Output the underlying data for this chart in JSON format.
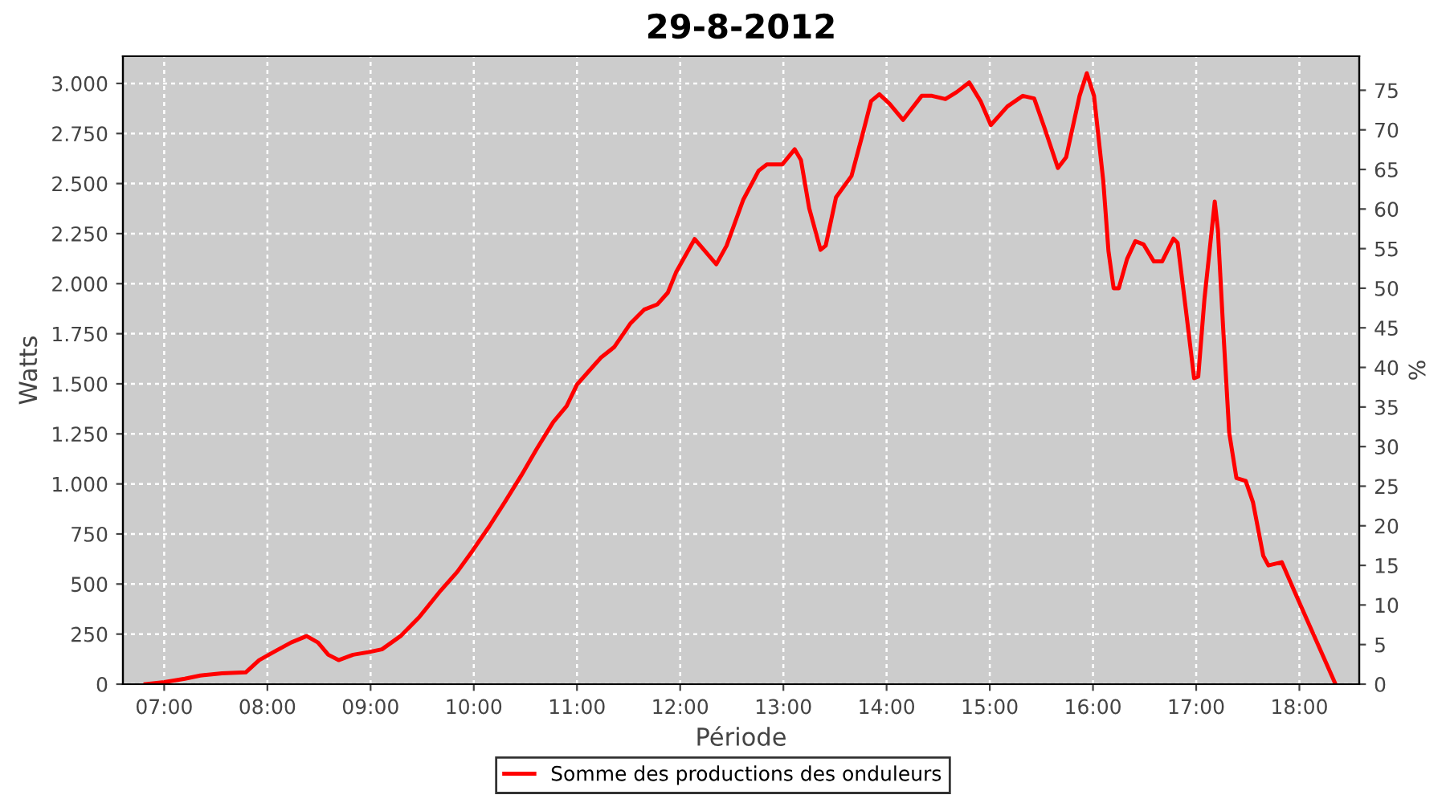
{
  "chart_data": {
    "type": "line",
    "title": "29-8-2012",
    "xlabel": "Période",
    "ylabel": "Watts",
    "y2label": "%",
    "series": [
      {
        "name": "Somme des productions des onduleurs",
        "color": "#ff0000",
        "x": [
          6.82,
          7.0,
          7.2,
          7.35,
          7.56,
          7.79,
          7.92,
          8.08,
          8.23,
          8.38,
          8.49,
          8.59,
          8.69,
          8.83,
          8.98,
          9.11,
          9.29,
          9.47,
          9.68,
          9.84,
          9.99,
          10.15,
          10.3,
          10.46,
          10.61,
          10.77,
          10.9,
          11.0,
          11.17,
          11.23,
          11.36,
          11.52,
          11.65,
          11.78,
          11.88,
          11.96,
          12.14,
          12.24,
          12.35,
          12.45,
          12.61,
          12.76,
          12.84,
          12.99,
          13.11,
          13.17,
          13.25,
          13.36,
          13.41,
          13.51,
          13.66,
          13.77,
          13.85,
          13.93,
          14.03,
          14.16,
          14.34,
          14.44,
          14.57,
          14.68,
          14.8,
          14.91,
          15.01,
          15.17,
          15.32,
          15.43,
          15.53,
          15.66,
          15.74,
          15.87,
          15.94,
          16.01,
          16.1,
          16.15,
          16.2,
          16.25,
          16.33,
          16.41,
          16.49,
          16.59,
          16.67,
          16.78,
          16.82,
          16.9,
          16.98,
          17.02,
          17.08,
          17.18,
          17.21,
          17.26,
          17.32,
          17.39,
          17.48,
          17.55,
          17.65,
          17.7,
          17.83,
          17.96,
          18.35
        ],
        "values": [
          0,
          10,
          27,
          43,
          54,
          59,
          120,
          166,
          208,
          240,
          208,
          147,
          120,
          147,
          160,
          174,
          240,
          334,
          468,
          561,
          668,
          788,
          909,
          1042,
          1175,
          1309,
          1389,
          1496,
          1595,
          1630,
          1683,
          1803,
          1870,
          1897,
          1955,
          2057,
          2223,
          2163,
          2097,
          2190,
          2418,
          2564,
          2596,
          2596,
          2671,
          2618,
          2377,
          2169,
          2190,
          2431,
          2538,
          2751,
          2912,
          2946,
          2898,
          2818,
          2938,
          2938,
          2922,
          2957,
          3005,
          2912,
          2792,
          2885,
          2938,
          2925,
          2778,
          2578,
          2632,
          2938,
          3051,
          2938,
          2511,
          2163,
          1977,
          1977,
          2123,
          2212,
          2196,
          2111,
          2111,
          2225,
          2204,
          1870,
          1528,
          1536,
          1923,
          2410,
          2271,
          1790,
          1256,
          1029,
          1015,
          909,
          641,
          593,
          609,
          454,
          0
        ]
      }
    ],
    "xlim": [
      6.6,
      18.58
    ],
    "xticks": [
      {
        "value": 7,
        "label": "07:00"
      },
      {
        "value": 8,
        "label": "08:00"
      },
      {
        "value": 9,
        "label": "09:00"
      },
      {
        "value": 10,
        "label": "10:00"
      },
      {
        "value": 11,
        "label": "11:00"
      },
      {
        "value": 12,
        "label": "12:00"
      },
      {
        "value": 13,
        "label": "13:00"
      },
      {
        "value": 14,
        "label": "14:00"
      },
      {
        "value": 15,
        "label": "15:00"
      },
      {
        "value": 16,
        "label": "16:00"
      },
      {
        "value": 17,
        "label": "17:00"
      },
      {
        "value": 18,
        "label": "18:00"
      }
    ],
    "ylim": [
      0,
      3136
    ],
    "yticks": [
      0,
      250,
      500,
      750,
      {
        "value": 1000,
        "label": "1.000"
      },
      {
        "value": 1250,
        "label": "1.250"
      },
      {
        "value": 1500,
        "label": "1.500"
      },
      {
        "value": 1750,
        "label": "1.750"
      },
      {
        "value": 2000,
        "label": "2.000"
      },
      {
        "value": 2250,
        "label": "2.250"
      },
      {
        "value": 2500,
        "label": "2.500"
      },
      {
        "value": 2750,
        "label": "2.750"
      },
      {
        "value": 3000,
        "label": "3.000"
      }
    ],
    "y2lim": [
      0,
      79.3
    ],
    "y2ticks": [
      0,
      5,
      10,
      15,
      20,
      25,
      30,
      35,
      40,
      45,
      50,
      55,
      60,
      65,
      70,
      75
    ],
    "grid": true,
    "legend": "bottom",
    "marker": "none",
    "line_style": "solid"
  }
}
